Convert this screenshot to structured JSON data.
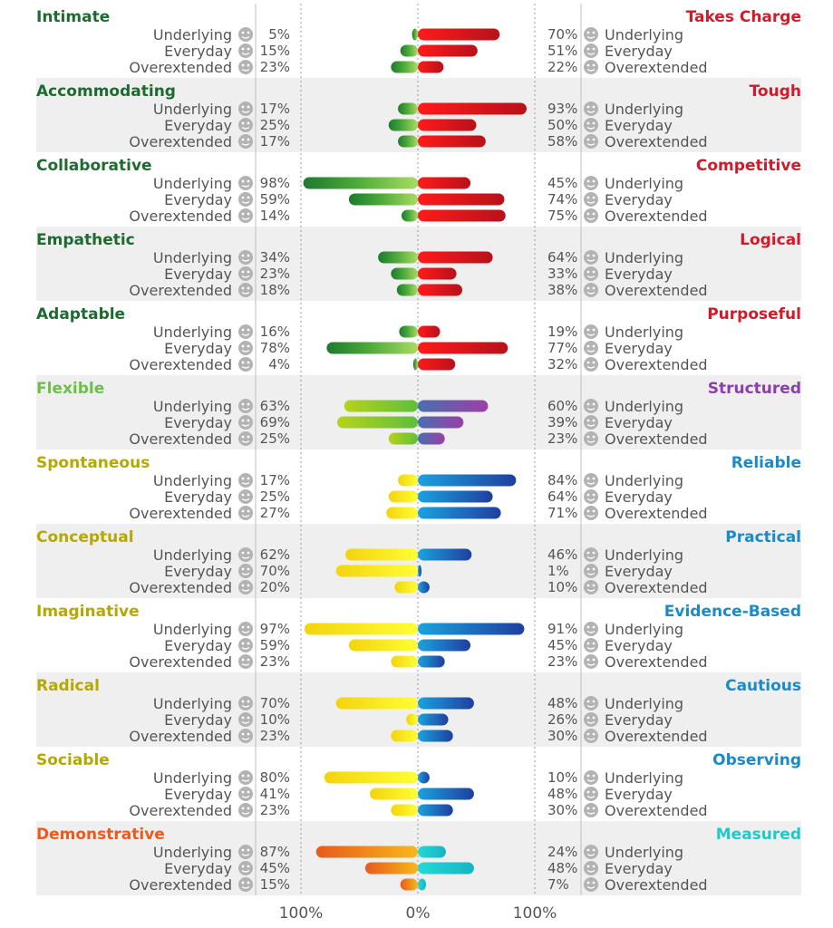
{
  "chart_data": {
    "type": "bar",
    "layout": "diverging-horizontal",
    "axis": {
      "min": -100,
      "max": 100,
      "unit": "%",
      "tick_labels": [
        "100%",
        "0%",
        "100%"
      ]
    },
    "levels": [
      "Underlying",
      "Everyday",
      "Overextended"
    ],
    "colors": {
      "left_titles": {
        "green": "#1e6b2f",
        "lightgreen": "#6cc04a",
        "olive": "#b5a800",
        "orange": "#ee5a1e"
      },
      "right_titles": {
        "red": "#d11a2a",
        "purple": "#8b3fa8",
        "blue": "#1a8ac8",
        "teal": "#22c8c8"
      }
    },
    "pairs": [
      {
        "left": "Intimate",
        "right": "Takes Charge",
        "left_values": [
          5,
          15,
          23
        ],
        "right_values": [
          70,
          51,
          22
        ],
        "left_color": "green",
        "right_color": "red"
      },
      {
        "left": "Accommodating",
        "right": "Tough",
        "left_values": [
          17,
          25,
          17
        ],
        "right_values": [
          93,
          50,
          58
        ],
        "left_color": "green",
        "right_color": "red"
      },
      {
        "left": "Collaborative",
        "right": "Competitive",
        "left_values": [
          98,
          59,
          14
        ],
        "right_values": [
          45,
          74,
          75
        ],
        "left_color": "green",
        "right_color": "red"
      },
      {
        "left": "Empathetic",
        "right": "Logical",
        "left_values": [
          34,
          23,
          18
        ],
        "right_values": [
          64,
          33,
          38
        ],
        "left_color": "green",
        "right_color": "red"
      },
      {
        "left": "Adaptable",
        "right": "Purposeful",
        "left_values": [
          16,
          78,
          4
        ],
        "right_values": [
          19,
          77,
          32
        ],
        "left_color": "green",
        "right_color": "red"
      },
      {
        "left": "Flexible",
        "right": "Structured",
        "left_values": [
          63,
          69,
          25
        ],
        "right_values": [
          60,
          39,
          23
        ],
        "left_color": "lightgreen",
        "right_color": "purple"
      },
      {
        "left": "Spontaneous",
        "right": "Reliable",
        "left_values": [
          17,
          25,
          27
        ],
        "right_values": [
          84,
          64,
          71
        ],
        "left_color": "olive",
        "right_color": "blue"
      },
      {
        "left": "Conceptual",
        "right": "Practical",
        "left_values": [
          62,
          70,
          20
        ],
        "right_values": [
          46,
          1,
          10
        ],
        "left_color": "olive",
        "right_color": "blue"
      },
      {
        "left": "Imaginative",
        "right": "Evidence-Based",
        "left_values": [
          97,
          59,
          23
        ],
        "right_values": [
          91,
          45,
          23
        ],
        "left_color": "olive",
        "right_color": "blue"
      },
      {
        "left": "Radical",
        "right": "Cautious",
        "left_values": [
          70,
          10,
          23
        ],
        "right_values": [
          48,
          26,
          30
        ],
        "left_color": "olive",
        "right_color": "blue"
      },
      {
        "left": "Sociable",
        "right": "Observing",
        "left_values": [
          80,
          41,
          23
        ],
        "right_values": [
          10,
          48,
          30
        ],
        "left_color": "olive",
        "right_color": "blue"
      },
      {
        "left": "Demonstrative",
        "right": "Measured",
        "left_values": [
          87,
          45,
          15
        ],
        "right_values": [
          24,
          48,
          7
        ],
        "left_color": "orange",
        "right_color": "teal"
      }
    ]
  }
}
